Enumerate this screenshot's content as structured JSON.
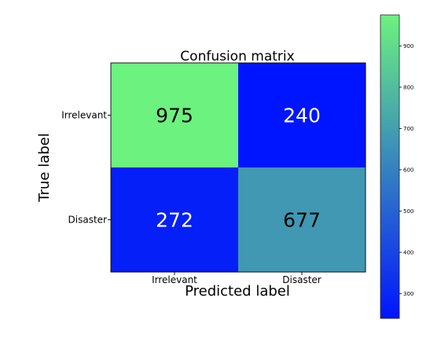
{
  "chart_data": {
    "type": "heatmap",
    "title": "Confusion matrix",
    "xlabel": "Predicted label",
    "ylabel": "True label",
    "x_categories": [
      "Irrelevant",
      "Disaster"
    ],
    "y_categories": [
      "Irrelevant",
      "Disaster"
    ],
    "values": [
      [
        975,
        240
      ],
      [
        272,
        677
      ]
    ],
    "colorbar": {
      "vmin": 240,
      "vmax": 975,
      "ticks": [
        300,
        400,
        500,
        600,
        700,
        800,
        900
      ],
      "colormap": "winter",
      "color_low": "#0015ff",
      "color_high": "#6cf27f"
    },
    "text_color_dark": "#000000",
    "text_color_light": "#ffffff"
  }
}
